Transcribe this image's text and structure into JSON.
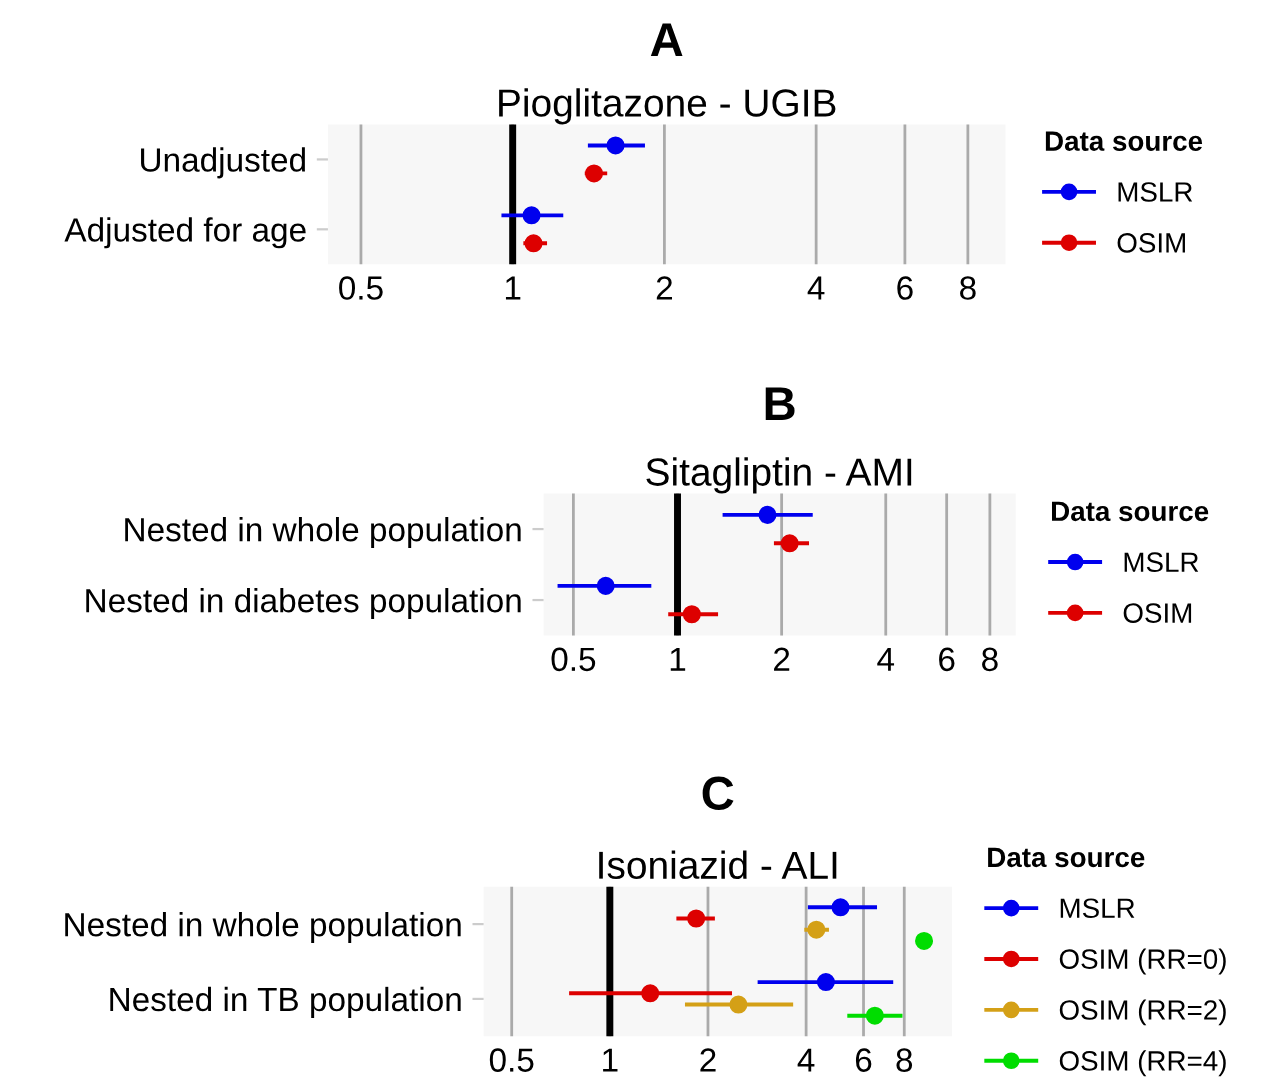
{
  "chart_data": [
    {
      "type": "scatter",
      "title": "A",
      "subtitle": "Pioglitazone - UGIB",
      "orientation": "horizontal",
      "categories": [
        "Unadjusted",
        "Adjusted for age"
      ],
      "log": "x",
      "xlim": [
        0.43,
        9.5
      ],
      "xticks": [
        0.5,
        1,
        2,
        4,
        6,
        8
      ],
      "grid": "x",
      "legend": "right",
      "legend_title": "Data source",
      "marker": "circle",
      "ref_lines": [
        {
          "axis": "x",
          "value": 1,
          "color": "#000000"
        }
      ],
      "series": [
        {
          "name": "MSLR",
          "color": "#0000ee",
          "values": [
            1.6,
            1.09
          ],
          "errors": [
            [
              1.41,
              1.83
            ],
            [
              0.95,
              1.26
            ]
          ]
        },
        {
          "name": "OSIM",
          "color": "#dd0000",
          "values": [
            1.45,
            1.1
          ],
          "errors": [
            [
              1.39,
              1.54
            ],
            [
              1.05,
              1.17
            ]
          ]
        }
      ]
    },
    {
      "type": "scatter",
      "title": "B",
      "subtitle": "Sitagliptin - AMI",
      "orientation": "horizontal",
      "categories": [
        "Nested in whole population",
        "Nested in diabetes population"
      ],
      "log": "x",
      "xlim": [
        0.41,
        9.5
      ],
      "xticks": [
        0.5,
        1,
        2,
        4,
        6,
        8
      ],
      "grid": "x",
      "legend": "right",
      "legend_title": "Data source",
      "marker": "circle",
      "ref_lines": [
        {
          "axis": "x",
          "value": 1,
          "color": "#000000"
        }
      ],
      "series": [
        {
          "name": "MSLR",
          "color": "#0000ee",
          "values": [
            1.82,
            0.62
          ],
          "errors": [
            [
              1.35,
              2.46
            ],
            [
              0.45,
              0.84
            ]
          ]
        },
        {
          "name": "OSIM",
          "color": "#dd0000",
          "values": [
            2.11,
            1.1
          ],
          "errors": [
            [
              1.9,
              2.4
            ],
            [
              0.94,
              1.31
            ]
          ]
        }
      ]
    },
    {
      "type": "scatter",
      "title": "C",
      "subtitle": "Isoniazid - ALI",
      "orientation": "horizontal",
      "categories": [
        "Nested in whole population",
        "Nested in TB population"
      ],
      "log": "x",
      "xlim": [
        0.41,
        11.2
      ],
      "xticks": [
        0.5,
        1,
        2,
        4,
        6,
        8
      ],
      "grid": "x",
      "legend": "right",
      "legend_title": "Data source",
      "marker": "circle",
      "ref_lines": [
        {
          "axis": "x",
          "value": 1,
          "color": "#000000"
        }
      ],
      "series": [
        {
          "name": "MSLR",
          "color": "#0000ee",
          "values": [
            5.1,
            4.6
          ],
          "errors": [
            [
              4.05,
              6.6
            ],
            [
              2.84,
              7.4
            ]
          ]
        },
        {
          "name": "OSIM (RR=0)",
          "color": "#dd0000",
          "values": [
            1.84,
            1.33
          ],
          "errors": [
            [
              1.6,
              2.1
            ],
            [
              0.75,
              2.37
            ]
          ]
        },
        {
          "name": "OSIM (RR=2)",
          "color": "#d4a017",
          "values": [
            4.3,
            2.48
          ],
          "errors": [
            [
              3.95,
              4.7
            ],
            [
              1.7,
              3.65
            ]
          ]
        },
        {
          "name": "OSIM (RR=4)",
          "color": "#00dd00",
          "values": [
            9.2,
            6.5
          ],
          "errors": [
            null,
            [
              5.35,
              7.9
            ]
          ]
        }
      ]
    }
  ]
}
